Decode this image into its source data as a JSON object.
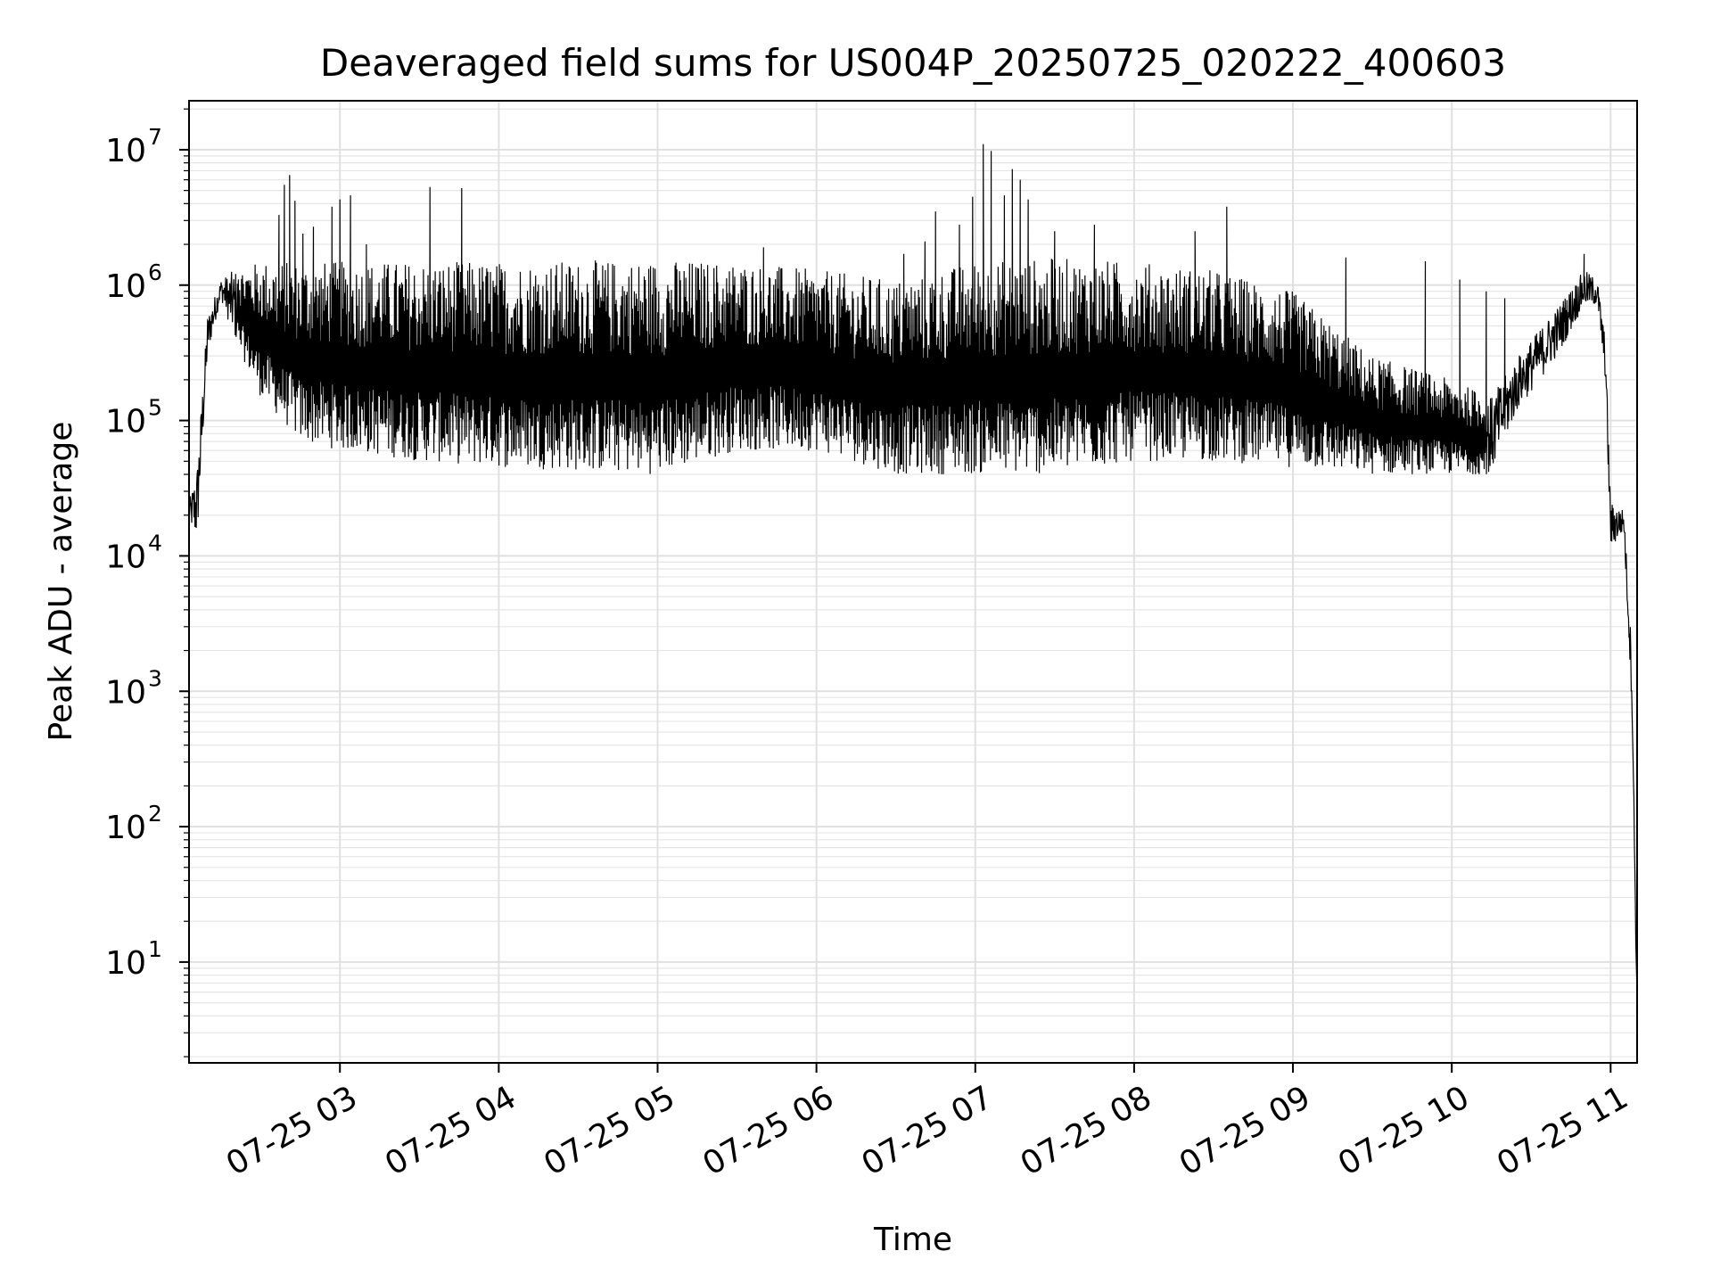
{
  "chart_data": {
    "type": "line",
    "title": "Deaveraged field sums for US004P_20250725_020222_400603",
    "xlabel": "Time",
    "ylabel": "Peak ADU - average",
    "yscale": "log",
    "grid": true,
    "legend": "none",
    "line_color": "#000000",
    "x_range": [
      "07-25 02:03",
      "07-25 11:10"
    ],
    "ylim": [
      1.8,
      23000000
    ],
    "x_ticks": [
      {
        "t": "07-25 03:00",
        "label": "07-25 03"
      },
      {
        "t": "07-25 04:00",
        "label": "07-25 04"
      },
      {
        "t": "07-25 05:00",
        "label": "07-25 05"
      },
      {
        "t": "07-25 06:00",
        "label": "07-25 06"
      },
      {
        "t": "07-25 07:00",
        "label": "07-25 07"
      },
      {
        "t": "07-25 08:00",
        "label": "07-25 08"
      },
      {
        "t": "07-25 09:00",
        "label": "07-25 09"
      },
      {
        "t": "07-25 10:00",
        "label": "07-25 10"
      },
      {
        "t": "07-25 11:00",
        "label": "07-25 11"
      }
    ],
    "y_ticks": [
      {
        "value": 10,
        "base": "10",
        "exp": "1"
      },
      {
        "value": 100,
        "base": "10",
        "exp": "2"
      },
      {
        "value": 1000,
        "base": "10",
        "exp": "3"
      },
      {
        "value": 10000,
        "base": "10",
        "exp": "4"
      },
      {
        "value": 100000,
        "base": "10",
        "exp": "5"
      },
      {
        "value": 1000000,
        "base": "10",
        "exp": "6"
      },
      {
        "value": 10000000,
        "base": "10",
        "exp": "7"
      }
    ],
    "envelope": [
      {
        "t": "07-25 02:03",
        "low": 18000,
        "high": 25000
      },
      {
        "t": "07-25 02:06",
        "low": 12000,
        "high": 45000
      },
      {
        "t": "07-25 02:10",
        "low": 300000,
        "high": 600000
      },
      {
        "t": "07-25 02:15",
        "low": 800000,
        "high": 1100000
      },
      {
        "t": "07-25 02:20",
        "low": 400000,
        "high": 1300000
      },
      {
        "t": "07-25 02:30",
        "low": 150000,
        "high": 1500000
      },
      {
        "t": "07-25 02:45",
        "low": 70000,
        "high": 1500000
      },
      {
        "t": "07-25 03:00",
        "low": 60000,
        "high": 1500000
      },
      {
        "t": "07-25 03:30",
        "low": 50000,
        "high": 1500000
      },
      {
        "t": "07-25 04:00",
        "low": 45000,
        "high": 1500000
      },
      {
        "t": "07-25 05:00",
        "low": 40000,
        "high": 1550000
      },
      {
        "t": "07-25 05:30",
        "low": 60000,
        "high": 1500000
      },
      {
        "t": "07-25 06:00",
        "low": 60000,
        "high": 1300000
      },
      {
        "t": "07-25 06:30",
        "low": 40000,
        "high": 1100000
      },
      {
        "t": "07-25 07:00",
        "low": 40000,
        "high": 1500000
      },
      {
        "t": "07-25 07:30",
        "low": 40000,
        "high": 1600000
      },
      {
        "t": "07-25 08:00",
        "low": 50000,
        "high": 1500000
      },
      {
        "t": "07-25 08:30",
        "low": 50000,
        "high": 1300000
      },
      {
        "t": "07-25 09:00",
        "low": 45000,
        "high": 900000
      },
      {
        "t": "07-25 09:30",
        "low": 40000,
        "high": 300000
      },
      {
        "t": "07-25 10:00",
        "low": 40000,
        "high": 200000
      },
      {
        "t": "07-25 10:15",
        "low": 40000,
        "high": 150000
      },
      {
        "t": "07-25 10:25",
        "low": 120000,
        "high": 300000
      },
      {
        "t": "07-25 10:40",
        "low": 300000,
        "high": 700000
      },
      {
        "t": "07-25 10:50",
        "low": 700000,
        "high": 1300000
      },
      {
        "t": "07-25 10:55",
        "low": 700000,
        "high": 1100000
      },
      {
        "t": "07-25 10:58",
        "low": 200000,
        "high": 400000
      },
      {
        "t": "07-25 11:00",
        "low": 11000,
        "high": 25000
      },
      {
        "t": "07-25 11:05",
        "low": 15000,
        "high": 22000
      },
      {
        "t": "07-25 11:08",
        "low": 800,
        "high": 2000
      },
      {
        "t": "07-25 11:10",
        "low": 3.5,
        "high": 5
      }
    ],
    "spikes": [
      {
        "t": "07-25 02:37",
        "value": 3300000
      },
      {
        "t": "07-25 02:39",
        "value": 5500000
      },
      {
        "t": "07-25 02:41",
        "value": 6500000
      },
      {
        "t": "07-25 02:43",
        "value": 4200000
      },
      {
        "t": "07-25 02:46",
        "value": 2400000
      },
      {
        "t": "07-25 02:50",
        "value": 2700000
      },
      {
        "t": "07-25 02:57",
        "value": 3800000
      },
      {
        "t": "07-25 03:00",
        "value": 4300000
      },
      {
        "t": "07-25 03:04",
        "value": 4600000
      },
      {
        "t": "07-25 03:10",
        "value": 2000000
      },
      {
        "t": "07-25 03:34",
        "value": 5300000
      },
      {
        "t": "07-25 03:46",
        "value": 5200000
      },
      {
        "t": "07-25 05:40",
        "value": 1900000
      },
      {
        "t": "07-25 06:33",
        "value": 1700000
      },
      {
        "t": "07-25 06:41",
        "value": 2100000
      },
      {
        "t": "07-25 06:45",
        "value": 3500000
      },
      {
        "t": "07-25 06:54",
        "value": 2800000
      },
      {
        "t": "07-25 06:59",
        "value": 4500000
      },
      {
        "t": "07-25 07:03",
        "value": 11000000
      },
      {
        "t": "07-25 07:06",
        "value": 9800000
      },
      {
        "t": "07-25 07:11",
        "value": 4600000
      },
      {
        "t": "07-25 07:14",
        "value": 7200000
      },
      {
        "t": "07-25 07:17",
        "value": 6000000
      },
      {
        "t": "07-25 07:20",
        "value": 4300000
      },
      {
        "t": "07-25 07:30",
        "value": 2500000
      },
      {
        "t": "07-25 07:45",
        "value": 2800000
      },
      {
        "t": "07-25 08:23",
        "value": 2500000
      },
      {
        "t": "07-25 08:35",
        "value": 3800000
      },
      {
        "t": "07-25 09:20",
        "value": 1600000
      },
      {
        "t": "07-25 09:50",
        "value": 1500000
      },
      {
        "t": "07-25 10:03",
        "value": 1100000
      },
      {
        "t": "07-25 10:13",
        "value": 900000
      },
      {
        "t": "07-25 10:20",
        "value": 800000
      },
      {
        "t": "07-25 10:50",
        "value": 1700000
      }
    ]
  }
}
